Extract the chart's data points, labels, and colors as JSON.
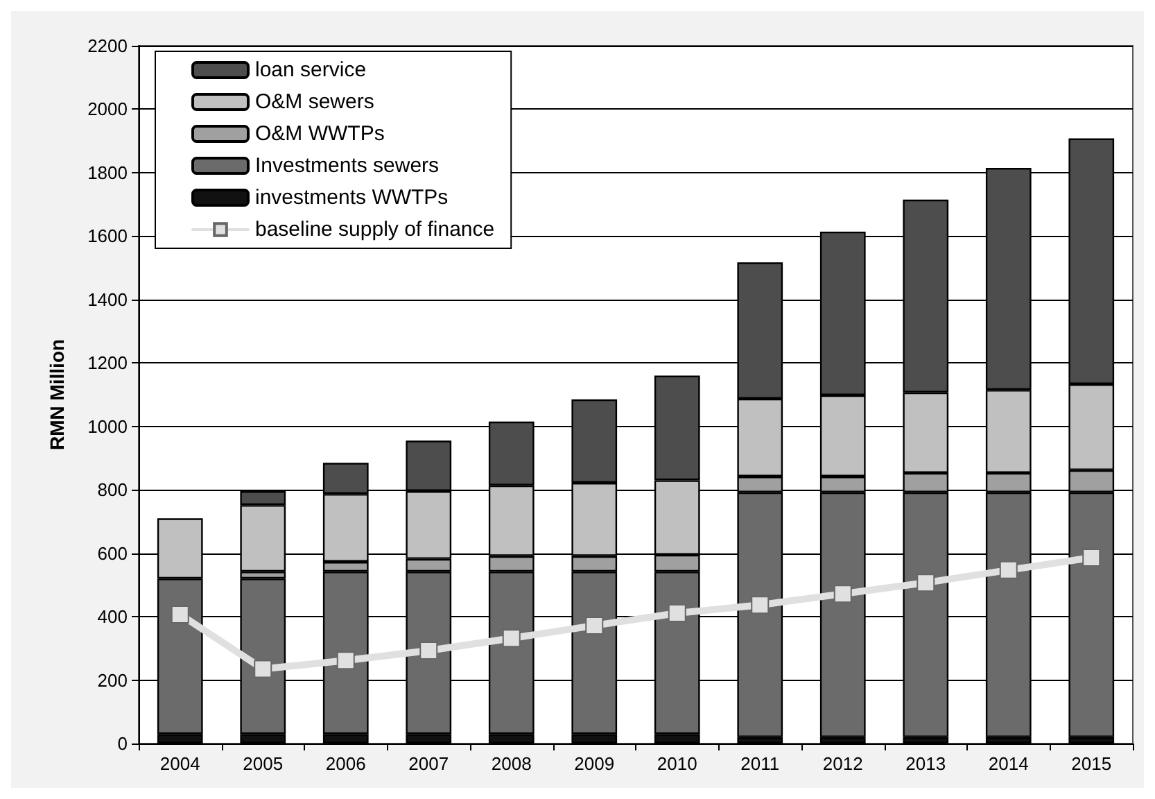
{
  "chart_data": {
    "type": "bar",
    "stacked": true,
    "ylabel": "RMN Million",
    "categories": [
      "2004",
      "2005",
      "2006",
      "2007",
      "2008",
      "2009",
      "2010",
      "2011",
      "2012",
      "2013",
      "2014",
      "2015"
    ],
    "ylim": [
      0,
      2200
    ],
    "yticks": [
      0,
      200,
      400,
      600,
      800,
      1000,
      1200,
      1400,
      1600,
      1800,
      2000,
      2200
    ],
    "grid": "y",
    "legend": "top left",
    "series": [
      {
        "name": "investments WWTPs",
        "color": "#111111",
        "values": [
          30,
          30,
          30,
          30,
          30,
          30,
          30,
          20,
          20,
          20,
          20,
          20
        ]
      },
      {
        "name": "Investments sewers",
        "color": "#6b6b6b",
        "values": [
          490,
          490,
          512,
          512,
          512,
          512,
          512,
          772,
          772,
          772,
          772,
          772
        ]
      },
      {
        "name": "O&M WWTPs",
        "color": "#a0a0a0",
        "values": [
          0,
          22,
          31,
          40,
          49,
          49,
          53,
          50,
          50,
          61,
          61,
          70
        ]
      },
      {
        "name": "O&M sewers",
        "color": "#c0c0c0",
        "values": [
          190,
          210,
          214,
          214,
          223,
          231,
          235,
          245,
          256,
          254,
          262,
          271
        ]
      },
      {
        "name": "loan service",
        "color": "#4d4d4d",
        "values": [
          0,
          44,
          98,
          159,
          201,
          263,
          330,
          430,
          516,
          608,
          700,
          775
        ]
      },
      {
        "name": "baseline supply of finance",
        "type": "line",
        "color": "#e0e0e0",
        "marker": "square",
        "values": [
          407,
          235,
          262,
          293,
          332,
          372,
          411,
          437,
          472,
          507,
          547,
          586
        ]
      }
    ]
  }
}
